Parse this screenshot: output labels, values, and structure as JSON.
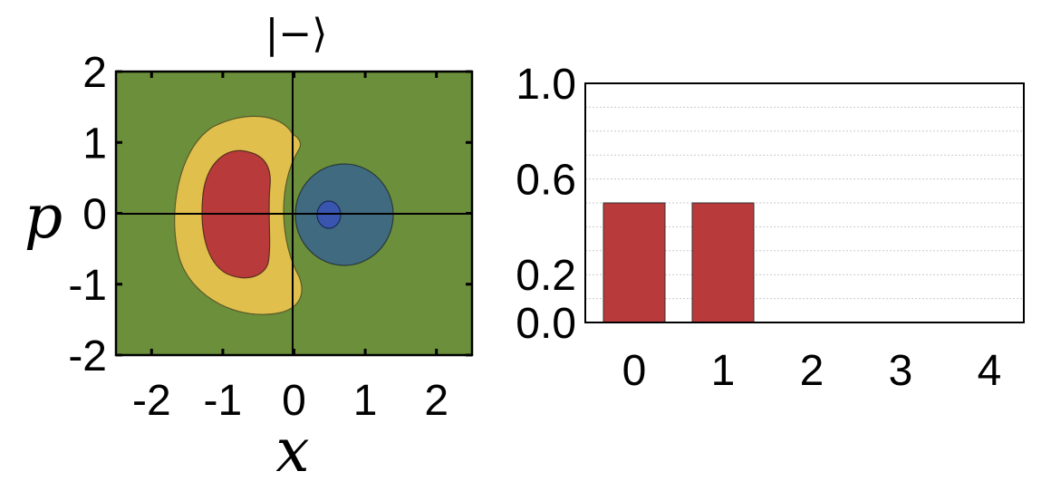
{
  "chart_data": [
    {
      "type": "heatmap",
      "title": "|−⟩",
      "xlabel": "x",
      "ylabel": "p",
      "xlim": [
        -2.5,
        2.5
      ],
      "ylim": [
        -2,
        2
      ],
      "xticks": [
        "-2",
        "-1",
        "0",
        "1",
        "2"
      ],
      "yticks": [
        "2",
        "1",
        "0",
        "-1",
        "-2"
      ],
      "grid": false,
      "colors": {
        "background": "#6b8f3a",
        "positive_high": "#b83a3a",
        "positive_mid": "#e0bf4c",
        "negative_mid": "#3f6a80",
        "negative_high": "#3a55b0"
      }
    },
    {
      "type": "bar",
      "categories": [
        "0",
        "1",
        "2",
        "3",
        "4"
      ],
      "values": [
        0.5,
        0.5,
        0,
        0,
        0
      ],
      "ylim": [
        0,
        1.0
      ],
      "yticks": [
        "1.0",
        "0.6",
        "0.2",
        "0.0"
      ],
      "grid": true,
      "colors": {
        "bar": "#b93a3a"
      }
    }
  ]
}
